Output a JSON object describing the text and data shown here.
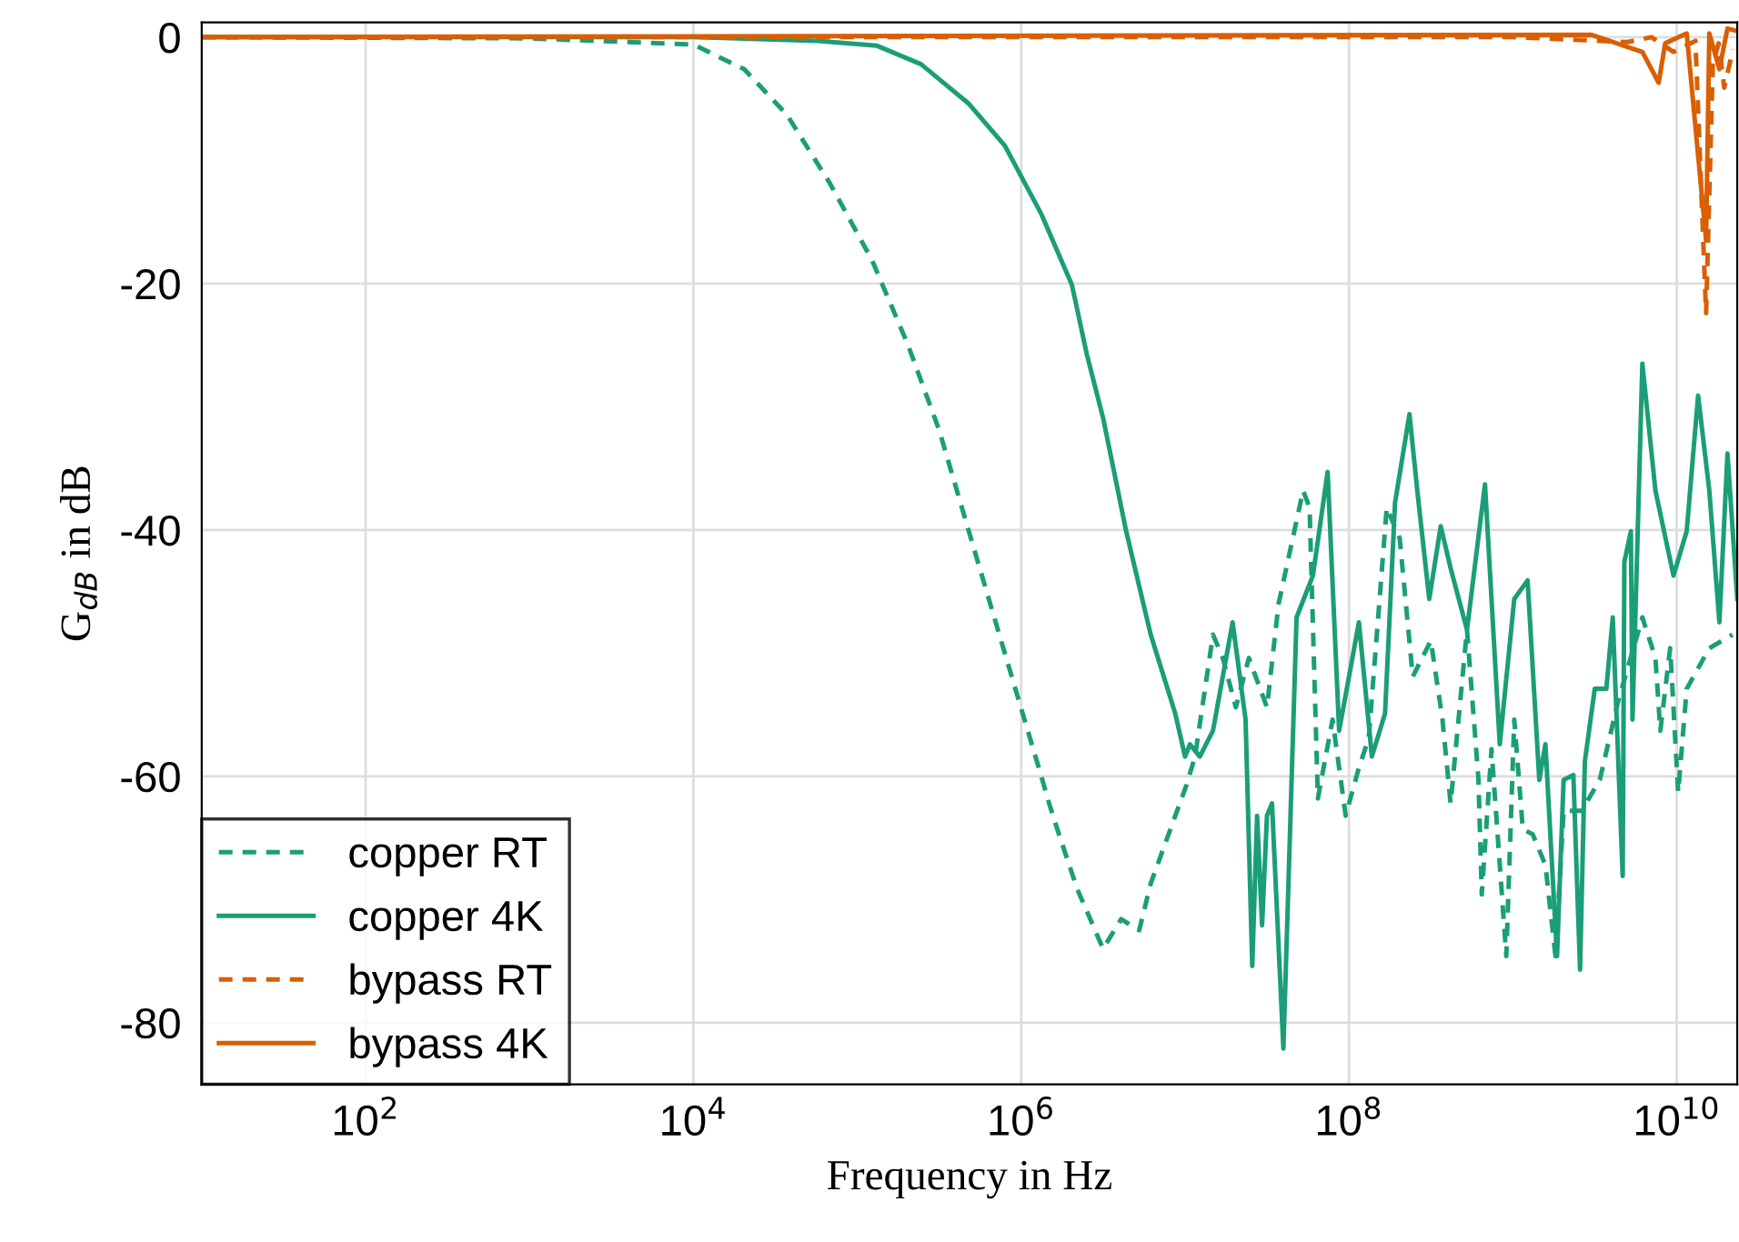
{
  "chart_data": {
    "type": "line",
    "xlabel": "Frequency in Hz",
    "ylabel": "G$_{dB}$ in dB",
    "log": "x",
    "grid": true,
    "legend": "bottom left",
    "xlim": [
      10,
      23400000000.0
    ],
    "ylim": [
      -85,
      1.2
    ],
    "xticks": [
      {
        "value": 100,
        "label": "10$^{2}$"
      },
      {
        "value": 10000,
        "label": "10$^{4}$"
      },
      {
        "value": 1000000,
        "label": "10$^{6}$"
      },
      {
        "value": 100000000,
        "label": "10$^{8}$"
      },
      {
        "value": 10000000000,
        "label": "10$^{10}$"
      }
    ],
    "yticks": [
      0,
      -20,
      -40,
      -60,
      -80
    ],
    "series": [
      {
        "name": "copper RT",
        "color": "#1b9e77",
        "line_style": "dashed",
        "x": [
          10,
          1000.0,
          10000.0,
          20400.0,
          37200.0,
          67600.0,
          123000.0,
          204000.0,
          316000.0,
          479000.0,
          794000.0,
          1320000.0,
          1480000.0,
          1700000.0,
          2190000.0,
          3160000.0,
          4070000.0,
          5250000.0,
          6170000.0,
          10200000.0,
          11500000.0,
          14800000.0,
          17000000.0,
          20400000.0,
          24500000.0,
          31600000.0,
          37200000.0,
          52500000.0,
          57500000.0,
          64600000.0,
          79400000.0,
          95500000.0,
          115000000.0,
          132000000.0,
          170000000.0,
          204000000.0,
          245000000.0,
          316000000.0,
          372000000.0,
          417000000.0,
          525000000.0,
          617000000.0,
          646000000.0,
          741000000.0,
          912000000.0,
          1020000000.0,
          1150000000.0,
          1320000000.0,
          1580000000.0,
          1820000000.0,
          2040000000.0,
          2630000000.0,
          3390000000.0,
          4370000000.0,
          6170000000.0,
          7410000000.0,
          7940000000.0,
          9120000000.0,
          10200000000.0,
          11500000000.0,
          15800000000.0,
          21900000000.0
        ],
        "values": [
          0,
          -0.1,
          -0.6,
          -2.6,
          -6.3,
          -11.8,
          -18.1,
          -25,
          -31.9,
          -40.1,
          -50,
          -59.9,
          -62.2,
          -64.7,
          -69.1,
          -74,
          -71.6,
          -72.5,
          -68.7,
          -60.7,
          -58.4,
          -48.5,
          -50.4,
          -54.4,
          -50.4,
          -54.4,
          -46,
          -36.8,
          -38.2,
          -61.8,
          -55.4,
          -63.2,
          -59.3,
          -56.9,
          -38.2,
          -40.7,
          -51.9,
          -49,
          -55.4,
          -62.2,
          -48.1,
          -60.3,
          -69.6,
          -57.8,
          -74.6,
          -55.4,
          -64.3,
          -64.7,
          -67.2,
          -74.6,
          -62.8,
          -62.8,
          -60.3,
          -54,
          -47.1,
          -50.4,
          -56.3,
          -49.6,
          -61.3,
          -52.9,
          -49.6,
          -48.5
        ]
      },
      {
        "name": "copper 4K",
        "color": "#1b9e77",
        "line_style": "solid",
        "x": [
          10,
          10000.0,
          57500.0,
          132000.0,
          245000.0,
          479000.0,
          794000.0,
          1320000.0,
          2040000.0,
          2510000.0,
          3160000.0,
          4370000.0,
          6170000.0,
          8710000.0,
          10000000.0,
          10700000.0,
          12300000.0,
          14800000.0,
          19500000.0,
          23400000.0,
          25700000.0,
          27500000.0,
          29500000.0,
          31600000.0,
          33900000.0,
          39800000.0,
          47900000.0,
          60300000.0,
          74100000.0,
          87100000.0,
          115000000.0,
          138000000.0,
          166000000.0,
          191000000.0,
          234000000.0,
          263000000.0,
          309000000.0,
          363000000.0,
          417000000.0,
          525000000.0,
          676000000.0,
          832000000.0,
          1020000000.0,
          1230000000.0,
          1450000000.0,
          1580000000.0,
          1860000000.0,
          2040000000.0,
          2340000000.0,
          2570000000.0,
          2750000000.0,
          3160000000.0,
          3720000000.0,
          4070000000.0,
          4680000000.0,
          4790000000.0,
          5250000000.0,
          5370000000.0,
          6170000000.0,
          7410000000.0,
          9550000000.0,
          11500000000.0,
          13500000000.0,
          15800000000.0,
          18200000000.0,
          20400000000.0,
          23400000000.0
        ],
        "values": [
          0,
          0,
          -0.3,
          -0.7,
          -2.2,
          -5.4,
          -8.8,
          -14.3,
          -20.1,
          -25.7,
          -30.9,
          -40.1,
          -48.5,
          -54.9,
          -58.4,
          -57.4,
          -58.4,
          -56.3,
          -47.5,
          -55.4,
          -75.4,
          -63.2,
          -72.1,
          -63.2,
          -62.2,
          -82.1,
          -47.1,
          -43.7,
          -35.3,
          -56.3,
          -47.5,
          -58.4,
          -54.9,
          -37.8,
          -30.6,
          -37.2,
          -45.6,
          -39.7,
          -43.1,
          -48.1,
          -36.3,
          -57.4,
          -45.6,
          -44.1,
          -60.3,
          -57.4,
          -74.6,
          -60.3,
          -59.9,
          -75.7,
          -58.8,
          -52.9,
          -52.9,
          -47.1,
          -68.1,
          -42.6,
          -40.1,
          -55.4,
          -26.5,
          -36.8,
          -43.7,
          -40.1,
          -29.1,
          -36.8,
          -47.5,
          -33.8,
          -45.6
        ]
      },
      {
        "name": "bypass RT",
        "color": "#d95f02",
        "line_style": "dashed",
        "x": [
          10,
          1000000000.0,
          5010000000.0,
          7000000000.0,
          9550000000.0,
          13000000000.0,
          15100000000.0,
          16600000000.0,
          18000000000.0,
          19500000000.0,
          22000000000.0
        ],
        "values": [
          0,
          0,
          -0.4,
          0,
          -1.2,
          -0.3,
          -22.4,
          -2.2,
          -0.5,
          -4.1,
          -1.0
        ]
      },
      {
        "name": "bypass 4K",
        "color": "#d95f02",
        "line_style": "solid",
        "x": [
          10,
          3000000000.0,
          6170000000.0,
          7760000000.0,
          8500000000.0,
          11500000000.0,
          15100000000.0,
          15800000000.0,
          18200000000.0,
          20400000000.0,
          23400000000.0
        ],
        "values": [
          0,
          0.2,
          -1.2,
          -3.7,
          -0.5,
          0.3,
          -16.5,
          0.3,
          -2.6,
          0.7,
          0.5
        ]
      }
    ]
  }
}
